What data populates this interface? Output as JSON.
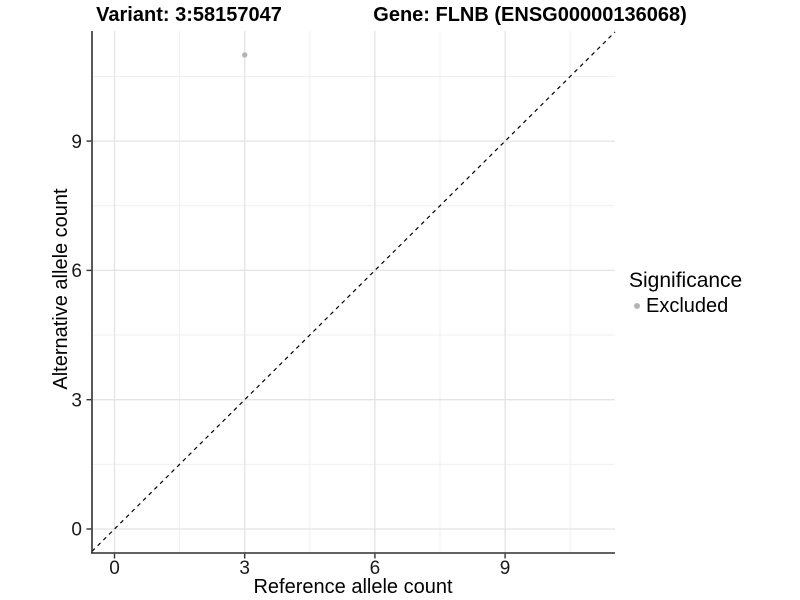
{
  "titles": {
    "left": "Variant: 3:58157047",
    "right": "Gene: FLNB (ENSG00000136068)"
  },
  "legend": {
    "title": "Significance",
    "entries": [
      {
        "label": "Excluded",
        "color": "#b4b4b4"
      }
    ]
  },
  "chart_data": {
    "type": "scatter",
    "title": "Variant: 3:58157047  /  Gene: FLNB (ENSG00000136068)",
    "xlabel": "Reference allele count",
    "ylabel": "Alternative allele count",
    "x_ticks": [
      0,
      3,
      6,
      9
    ],
    "y_ticks": [
      0,
      3,
      6,
      9
    ],
    "x_minor_ticks": [
      1.5,
      4.5,
      7.5,
      10.5
    ],
    "y_minor_ticks": [
      1.5,
      4.5,
      7.5,
      10.5
    ],
    "xlim": [
      -0.52,
      11.53
    ],
    "ylim": [
      -0.56,
      11.55
    ],
    "grid": "major-and-minor",
    "legend_position": "right",
    "series": [
      {
        "name": "Excluded",
        "color": "#b4b4b4",
        "points": [
          {
            "x": 3,
            "y": 11
          }
        ]
      }
    ],
    "reference_line": {
      "type": "identity",
      "slope": 1,
      "intercept": 0,
      "style": "dashed",
      "color": "#000000"
    }
  },
  "colors": {
    "background": "#ffffff",
    "grid_major": "#e4e4e4",
    "grid_minor": "#efefef",
    "axis_line": "#2f2f2f",
    "tick_mark": "#333333",
    "tick_label": "#1a1a1a",
    "point": "#b4b4b4",
    "reference_line": "#000000"
  }
}
